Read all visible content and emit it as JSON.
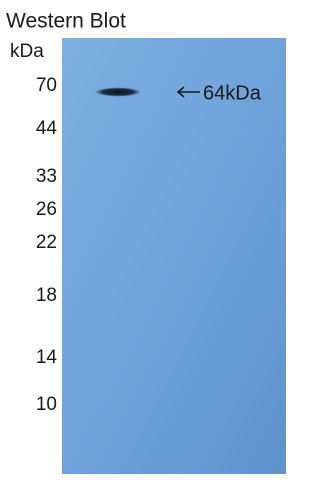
{
  "header": {
    "title": "Western Blot"
  },
  "marker_unit": "kDa",
  "markers": [
    "70",
    "44",
    "33",
    "26",
    "22",
    "18",
    "14",
    "10"
  ],
  "band_annotation": "64kDa"
}
